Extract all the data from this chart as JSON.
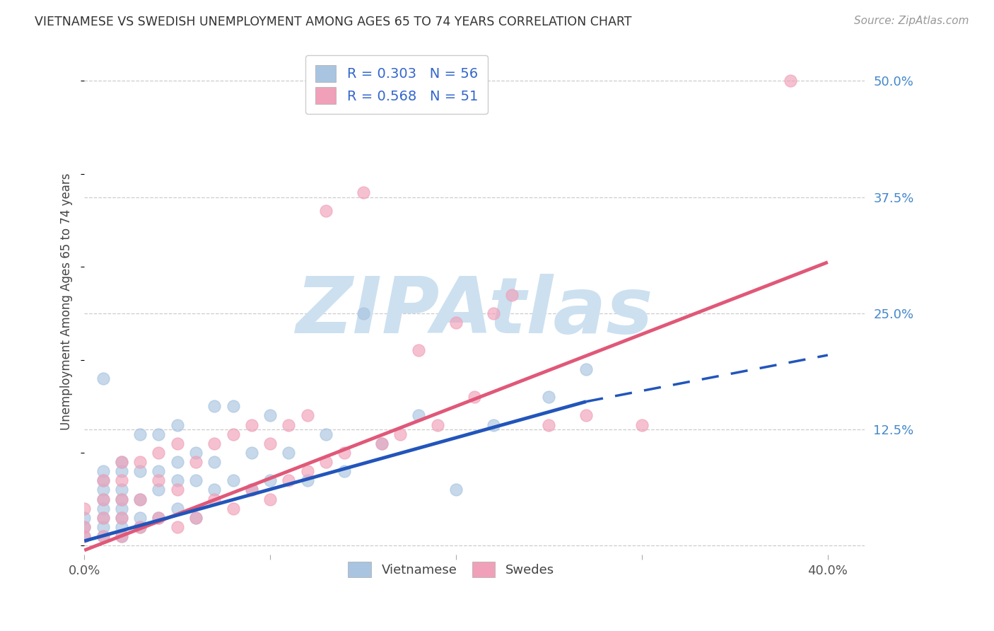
{
  "title": "VIETNAMESE VS SWEDISH UNEMPLOYMENT AMONG AGES 65 TO 74 YEARS CORRELATION CHART",
  "source": "Source: ZipAtlas.com",
  "ylabel": "Unemployment Among Ages 65 to 74 years",
  "xlim": [
    0.0,
    0.42
  ],
  "ylim": [
    -0.01,
    0.535
  ],
  "yticks_right": [
    0.0,
    0.125,
    0.25,
    0.375,
    0.5
  ],
  "ytick_right_labels": [
    "",
    "12.5%",
    "25.0%",
    "37.5%",
    "50.0%"
  ],
  "r_vietnamese": 0.303,
  "n_vietnamese": 56,
  "r_swedes": 0.568,
  "n_swedes": 51,
  "vietnamese_color": "#a8c4e0",
  "swedes_color": "#f0a0b8",
  "trend_vietnamese_color": "#2255bb",
  "trend_swedes_color": "#e05878",
  "watermark": "ZIPAtlas",
  "watermark_color": "#cce0f0",
  "background_color": "#ffffff",
  "viet_trend_start_x": 0.0,
  "viet_trend_start_y": 0.005,
  "viet_trend_end_x": 0.27,
  "viet_trend_end_y": 0.155,
  "viet_trend_dash_end_x": 0.4,
  "viet_trend_dash_end_y": 0.205,
  "swe_trend_start_x": 0.0,
  "swe_trend_start_y": -0.005,
  "swe_trend_end_x": 0.4,
  "swe_trend_end_y": 0.305,
  "vietnamese_x": [
    0.0,
    0.0,
    0.0,
    0.01,
    0.01,
    0.01,
    0.01,
    0.01,
    0.01,
    0.01,
    0.01,
    0.01,
    0.02,
    0.02,
    0.02,
    0.02,
    0.02,
    0.02,
    0.02,
    0.02,
    0.03,
    0.03,
    0.03,
    0.03,
    0.03,
    0.04,
    0.04,
    0.04,
    0.04,
    0.05,
    0.05,
    0.05,
    0.05,
    0.06,
    0.06,
    0.06,
    0.07,
    0.07,
    0.07,
    0.08,
    0.08,
    0.09,
    0.09,
    0.1,
    0.1,
    0.11,
    0.12,
    0.13,
    0.14,
    0.15,
    0.16,
    0.18,
    0.2,
    0.22,
    0.25,
    0.27
  ],
  "vietnamese_y": [
    0.01,
    0.02,
    0.03,
    0.01,
    0.02,
    0.03,
    0.04,
    0.05,
    0.06,
    0.07,
    0.08,
    0.18,
    0.01,
    0.02,
    0.03,
    0.04,
    0.05,
    0.06,
    0.08,
    0.09,
    0.02,
    0.03,
    0.05,
    0.08,
    0.12,
    0.03,
    0.06,
    0.08,
    0.12,
    0.04,
    0.07,
    0.09,
    0.13,
    0.03,
    0.07,
    0.1,
    0.06,
    0.09,
    0.15,
    0.07,
    0.15,
    0.06,
    0.1,
    0.07,
    0.14,
    0.1,
    0.07,
    0.12,
    0.08,
    0.25,
    0.11,
    0.14,
    0.06,
    0.13,
    0.16,
    0.19
  ],
  "swedes_x": [
    0.0,
    0.0,
    0.0,
    0.01,
    0.01,
    0.01,
    0.01,
    0.02,
    0.02,
    0.02,
    0.02,
    0.02,
    0.03,
    0.03,
    0.03,
    0.04,
    0.04,
    0.04,
    0.05,
    0.05,
    0.05,
    0.06,
    0.06,
    0.07,
    0.07,
    0.08,
    0.08,
    0.09,
    0.09,
    0.1,
    0.1,
    0.11,
    0.11,
    0.12,
    0.12,
    0.13,
    0.13,
    0.14,
    0.15,
    0.16,
    0.17,
    0.18,
    0.19,
    0.2,
    0.21,
    0.22,
    0.23,
    0.25,
    0.27,
    0.3,
    0.38
  ],
  "swedes_y": [
    0.01,
    0.02,
    0.04,
    0.01,
    0.03,
    0.05,
    0.07,
    0.01,
    0.03,
    0.05,
    0.07,
    0.09,
    0.02,
    0.05,
    0.09,
    0.03,
    0.07,
    0.1,
    0.02,
    0.06,
    0.11,
    0.03,
    0.09,
    0.05,
    0.11,
    0.04,
    0.12,
    0.06,
    0.13,
    0.05,
    0.11,
    0.07,
    0.13,
    0.08,
    0.14,
    0.09,
    0.36,
    0.1,
    0.38,
    0.11,
    0.12,
    0.21,
    0.13,
    0.24,
    0.16,
    0.25,
    0.27,
    0.13,
    0.14,
    0.13,
    0.5
  ]
}
